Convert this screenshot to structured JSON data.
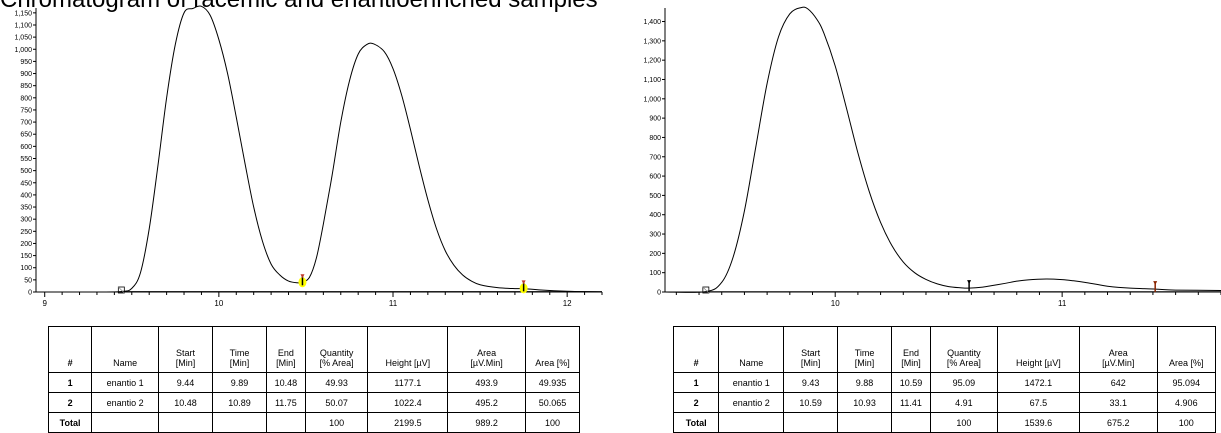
{
  "page_title": "Chromatogram of racemic and enantioenriched samples",
  "chart_data": [
    {
      "type": "line",
      "title": "",
      "xlabel": "",
      "ylabel": "",
      "xlim": [
        8.95,
        12.2
      ],
      "ylim": [
        0,
        1170
      ],
      "x_ticks": [
        "9",
        "10",
        "11",
        "12"
      ],
      "y_ticks": [
        "0",
        "50",
        "100",
        "150",
        "200",
        "250",
        "300",
        "350",
        "400",
        "450",
        "500",
        "550",
        "600",
        "650",
        "700",
        "750",
        "800",
        "850",
        "900",
        "950",
        "1,000",
        "1,050",
        "1,100",
        "1,150"
      ],
      "baseline_markers": [
        {
          "x": 9.44,
          "y": 5,
          "color": "#888888"
        },
        {
          "x": 10.48,
          "y": 40,
          "color": "#ffff00"
        },
        {
          "x": 11.75,
          "y": 15,
          "color": "#ffff00"
        }
      ],
      "series": [
        {
          "x": [
            8.95,
            9.3,
            9.44,
            9.5,
            9.55,
            9.6,
            9.65,
            9.7,
            9.75,
            9.8,
            9.85,
            9.9,
            9.95,
            10.0,
            10.05,
            10.1,
            10.15,
            10.2,
            10.25,
            10.3,
            10.35,
            10.4,
            10.45,
            10.48,
            10.52,
            10.56,
            10.6,
            10.65,
            10.7,
            10.75,
            10.8,
            10.85,
            10.89,
            10.95,
            11.0,
            11.05,
            11.1,
            11.15,
            11.2,
            11.25,
            11.3,
            11.35,
            11.4,
            11.45,
            11.5,
            11.6,
            11.7,
            11.75,
            11.85,
            12.0,
            12.2
          ],
          "y": [
            0,
            0,
            2,
            15,
            80,
            260,
            520,
            800,
            1020,
            1150,
            1168,
            1177,
            1140,
            1040,
            900,
            720,
            530,
            350,
            210,
            115,
            70,
            45,
            38,
            40,
            60,
            140,
            280,
            480,
            700,
            870,
            980,
            1020,
            1022,
            990,
            920,
            810,
            670,
            520,
            380,
            260,
            170,
            110,
            70,
            45,
            30,
            18,
            14,
            14,
            8,
            3,
            0
          ]
        }
      ],
      "table": {
        "headers": [
          "#",
          "Name",
          "Start\n[Min]",
          "Time\n[Min]",
          "End\n[Min]",
          "Quantity\n[% Area]",
          "Height [µV]",
          "Area\n[µV.Min]",
          "Area [%]"
        ],
        "rows": [
          [
            "1",
            "enantio 1",
            "9.44",
            "9.89",
            "10.48",
            "49.93",
            "1177.1",
            "493.9",
            "49.935"
          ],
          [
            "2",
            "enantio 2",
            "10.48",
            "10.89",
            "11.75",
            "50.07",
            "1022.4",
            "495.2",
            "50.065"
          ],
          [
            "Total",
            "",
            "",
            "",
            "",
            "100",
            "2199.5",
            "989.2",
            "100"
          ]
        ]
      }
    },
    {
      "type": "line",
      "title": "",
      "xlabel": "",
      "ylabel": "",
      "xlim": [
        9.25,
        11.7
      ],
      "ylim": [
        0,
        1470
      ],
      "x_ticks": [
        "10",
        "11"
      ],
      "y_ticks": [
        "0",
        "100",
        "200",
        "300",
        "400",
        "500",
        "600",
        "700",
        "800",
        "900",
        "1,000",
        "1,100",
        "1,200",
        "1,300",
        "1,400"
      ],
      "baseline_markers": [
        {
          "x": 9.43,
          "y": 5,
          "color": "#888888"
        },
        {
          "x": 10.59,
          "y": 20,
          "color": "#000000"
        },
        {
          "x": 11.41,
          "y": 15,
          "color": "#8b2500"
        }
      ],
      "series": [
        {
          "x": [
            9.25,
            9.43,
            9.5,
            9.55,
            9.6,
            9.65,
            9.7,
            9.75,
            9.8,
            9.85,
            9.88,
            9.92,
            9.95,
            10.0,
            10.05,
            10.1,
            10.15,
            10.2,
            10.25,
            10.3,
            10.35,
            10.4,
            10.45,
            10.5,
            10.55,
            10.59,
            10.65,
            10.7,
            10.75,
            10.8,
            10.85,
            10.93,
            11.0,
            11.05,
            11.1,
            11.15,
            11.2,
            11.3,
            11.41,
            11.5,
            11.7
          ],
          "y": [
            0,
            2,
            50,
            180,
            420,
            750,
            1080,
            1320,
            1440,
            1472,
            1465,
            1410,
            1340,
            1170,
            950,
            720,
            520,
            360,
            240,
            155,
            100,
            65,
            42,
            28,
            22,
            20,
            25,
            35,
            45,
            56,
            63,
            67,
            64,
            58,
            50,
            40,
            30,
            20,
            15,
            10,
            8
          ]
        }
      ],
      "table": {
        "headers": [
          "#",
          "Name",
          "Start\n[Min]",
          "Time\n[Min]",
          "End\n[Min]",
          "Quantity\n[% Area]",
          "Height [µV]",
          "Area\n[µV.Min]",
          "Area [%]"
        ],
        "rows": [
          [
            "1",
            "enantio 1",
            "9.43",
            "9.88",
            "10.59",
            "95.09",
            "1472.1",
            "642",
            "95.094"
          ],
          [
            "2",
            "enantio 2",
            "10.59",
            "10.93",
            "11.41",
            "4.91",
            "67.5",
            "33.1",
            "4.906"
          ],
          [
            "Total",
            "",
            "",
            "",
            "",
            "100",
            "1539.6",
            "675.2",
            "100"
          ]
        ]
      }
    }
  ]
}
